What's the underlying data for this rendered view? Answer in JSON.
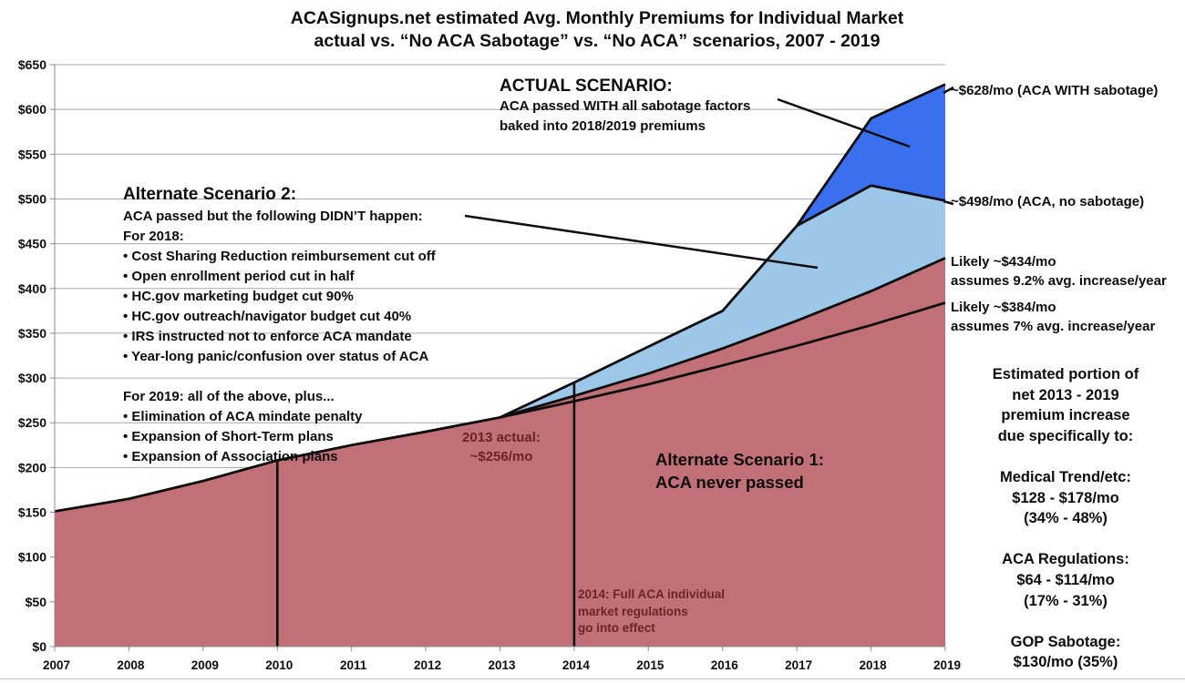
{
  "title": {
    "line1": "ACASignups.net estimated Avg. Monthly Premiums for Individual Market",
    "line2": "actual vs. “No ACA Sabotage” vs. “No ACA” scenarios, 2007 - 2019"
  },
  "chart_data": {
    "type": "area",
    "x_categories": [
      2007,
      2008,
      2009,
      2010,
      2011,
      2012,
      2013,
      2014,
      2015,
      2016,
      2017,
      2018,
      2019
    ],
    "ylim": [
      0,
      650
    ],
    "y_tick_step": 50,
    "y_tick_prefix": "$",
    "grid": true,
    "legend_position": "none",
    "series": [
      {
        "name": "Actual scenario: ACA WITH sabotage",
        "slug": "aca-with-sabotage",
        "color": "#3A70F0",
        "points": [
          [
            2017,
            470
          ],
          [
            2018,
            590
          ],
          [
            2019,
            628
          ]
        ]
      },
      {
        "name": "ACA, no sabotage",
        "slug": "aca-no-sabotage",
        "color": "#9CC7E8",
        "points": [
          [
            2013,
            256
          ],
          [
            2014,
            295
          ],
          [
            2015,
            335
          ],
          [
            2016,
            375
          ],
          [
            2017,
            470
          ],
          [
            2018,
            515
          ],
          [
            2019,
            498
          ]
        ]
      },
      {
        "name": "No ACA (actual to 2013, then 9.2% avg. increase/year)",
        "slug": "no-aca-9-2-pct",
        "color": "#C17078",
        "points": [
          [
            2007,
            151
          ],
          [
            2008,
            165
          ],
          [
            2009,
            185
          ],
          [
            2010,
            208
          ],
          [
            2011,
            225
          ],
          [
            2012,
            240
          ],
          [
            2013,
            256
          ],
          [
            2014,
            280
          ],
          [
            2015,
            305
          ],
          [
            2016,
            333
          ],
          [
            2017,
            364
          ],
          [
            2018,
            397
          ],
          [
            2019,
            434
          ]
        ]
      },
      {
        "name": "No ACA (7% avg. increase/year)",
        "slug": "no-aca-7-pct",
        "color": "#0d0d0d",
        "points": [
          [
            2013,
            256
          ],
          [
            2014,
            274
          ],
          [
            2015,
            293
          ],
          [
            2016,
            314
          ],
          [
            2017,
            336
          ],
          [
            2018,
            359
          ],
          [
            2019,
            384
          ]
        ]
      }
    ],
    "vertical_markers": [
      {
        "year": 2010,
        "value": 208
      },
      {
        "year": 2014,
        "value": 295
      }
    ],
    "pointer_lines": [
      [
        853,
        109,
        998,
        161
      ],
      [
        510,
        237,
        897,
        294
      ],
      [
        1035,
        102,
        1046,
        96
      ],
      [
        1035,
        221,
        1046,
        224
      ]
    ]
  },
  "annotations": {
    "actual_scenario": {
      "heading": "ACTUAL SCENARIO:",
      "lines": [
        "ACA passed WITH all sabotage factors",
        "baked into 2018/2019 premiums"
      ]
    },
    "alt2": {
      "heading": "Alternate Scenario 2:",
      "lines": [
        "ACA passed but the following DIDN’T happen:",
        "For 2018:",
        "• Cost Sharing Reduction reimbursement cut off",
        "• Open enrollment period cut in half",
        "• HC.gov marketing budget cut 90%",
        "• HC.gov outreach/navigator budget cut 40%",
        "• IRS instructed not to enforce ACA mandate",
        "• Year-long panic/confusion over status of ACA",
        "",
        "For 2019: all of the above, plus...",
        "• Elimination of ACA mindate penalty",
        "• Expansion of Short-Term plans",
        "• Expansion of Association plans"
      ]
    },
    "alt1": {
      "line1": "Alternate Scenario 1:",
      "line2": "ACA never passed"
    },
    "actual_2013": {
      "line1": "2013 actual:",
      "line2": "~$256/mo"
    },
    "note_2014": {
      "lines": [
        "2014: Full ACA individual",
        "market regulations",
        "go into effect"
      ]
    },
    "label_628": "~$628/mo (ACA WITH sabotage)",
    "label_498": "~$498/mo (ACA, no sabotage)",
    "label_434": {
      "line1": "Likely ~$434/mo",
      "line2": "assumes 9.2% avg. increase/year"
    },
    "label_384": {
      "line1": "Likely ~$384/mo",
      "line2": "assumes 7% avg. increase/year"
    },
    "right_stats": {
      "lines": [
        "Estimated portion of",
        "net 2013 - 2019",
        "premium increase",
        "due specifically to:",
        "",
        "Medical Trend/etc:",
        "$128 - $178/mo",
        "(34% - 48%)",
        "",
        "ACA Regulations:",
        "$64 - $114/mo",
        "(17% - 31%)",
        "",
        "GOP Sabotage:",
        "$130/mo (35%)"
      ]
    }
  },
  "colors": {
    "dark_blue": "#3A70F0",
    "light_blue": "#9CC7E8",
    "rose": "#C17078",
    "maroon_text": "#6B2328",
    "grid": "#A8A8A8",
    "axis": "#8C8C8C",
    "line": "#0d0d0d",
    "bottom_border": "#C6C6C6"
  }
}
